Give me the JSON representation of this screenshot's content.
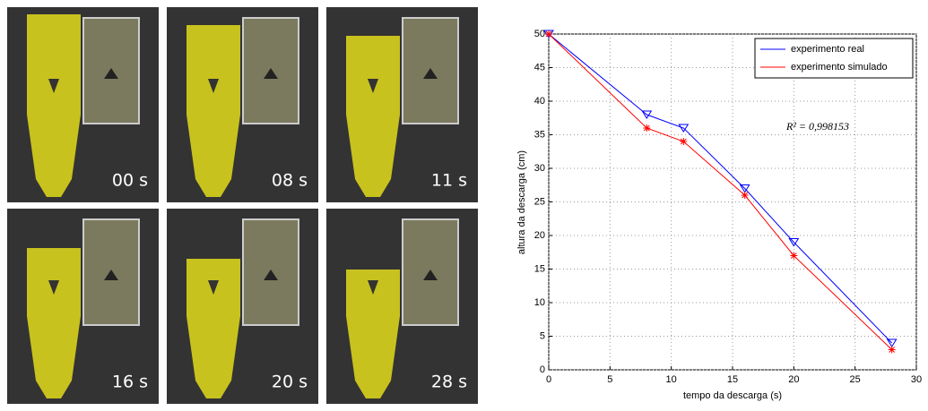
{
  "panels": [
    {
      "label": "00 s"
    },
    {
      "label": "08 s"
    },
    {
      "label": "11 s"
    },
    {
      "label": "16 s"
    },
    {
      "label": "20 s"
    },
    {
      "label": "28 s"
    }
  ],
  "chart_data": {
    "type": "line",
    "x_label": "tempo da descarga (s)",
    "y_label": "altura da descarga (cm)",
    "annotation": "R² = 0,998153",
    "x": [
      0,
      8,
      11,
      16,
      20,
      28
    ],
    "series": [
      {
        "name": "experimento real",
        "color": "#0000ff",
        "marker": "triangle-down",
        "values": [
          50,
          38,
          36,
          27,
          19,
          4
        ]
      },
      {
        "name": "experimento simulado",
        "color": "#ff0000",
        "marker": "asterisk",
        "values": [
          50,
          36,
          34,
          26,
          17,
          3
        ]
      }
    ],
    "xlim": [
      0,
      30
    ],
    "xticks": [
      0,
      5,
      10,
      15,
      20,
      25,
      30
    ],
    "ylim": [
      0,
      50
    ],
    "yticks": [
      0,
      5,
      10,
      15,
      20,
      25,
      30,
      35,
      40,
      45,
      50
    ],
    "grid": true,
    "legend": "upper right"
  }
}
